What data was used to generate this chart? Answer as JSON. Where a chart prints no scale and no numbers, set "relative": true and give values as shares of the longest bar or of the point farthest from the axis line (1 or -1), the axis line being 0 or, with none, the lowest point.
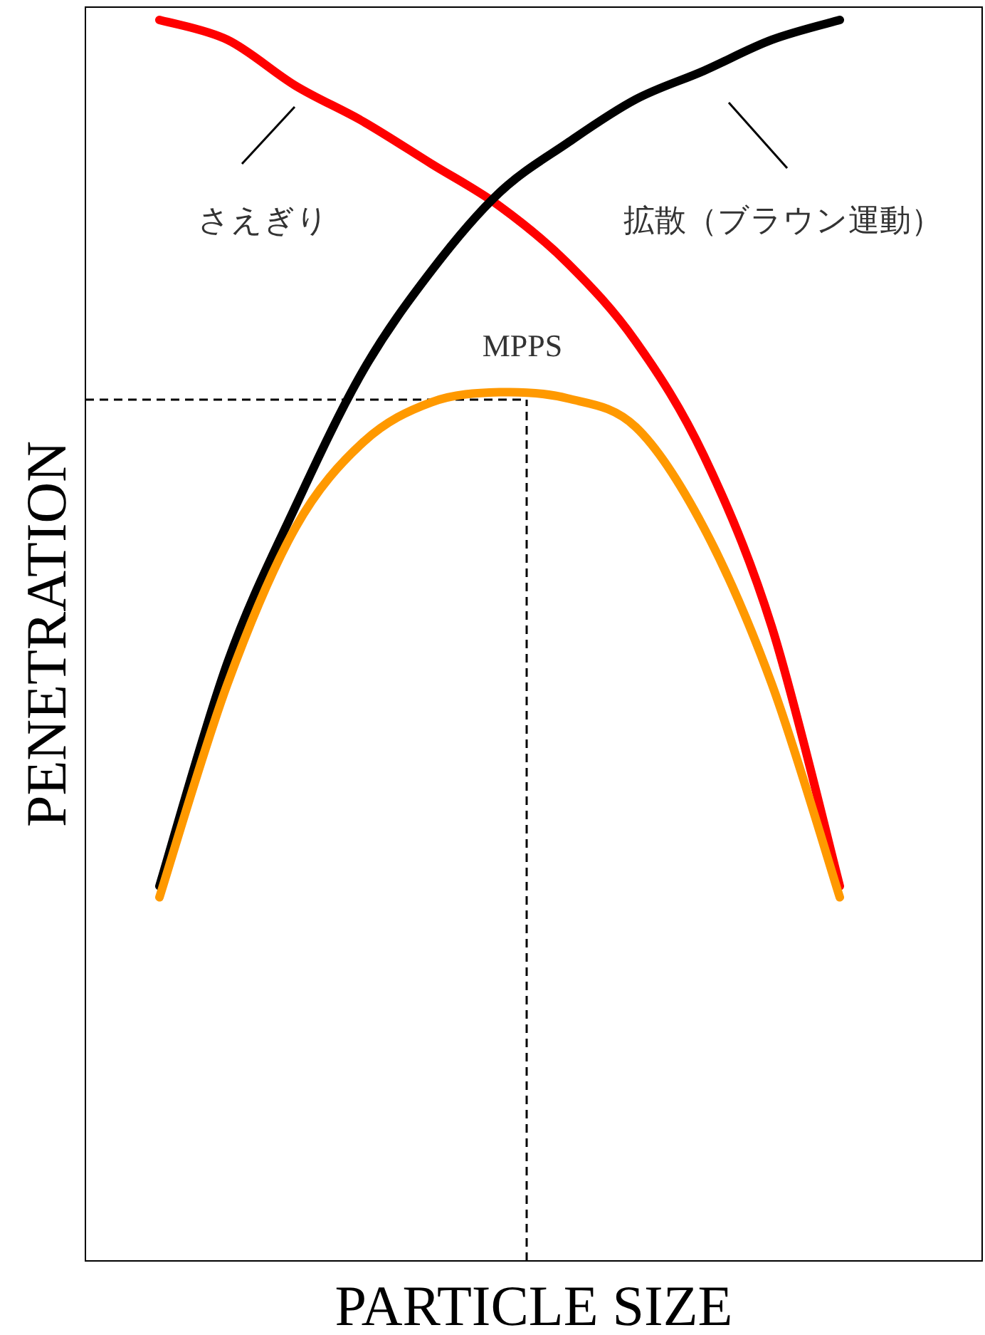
{
  "chart_data": {
    "type": "line",
    "relative": true,
    "xlabel": "PARTICLE SIZE",
    "ylabel": "PENETRATION",
    "categories": [
      null,
      null,
      null,
      null,
      null,
      null,
      null,
      null,
      null,
      null,
      null
    ],
    "series": [
      {
        "color": "#ff0000",
        "values": [
          1.0,
          0.984,
          0.947,
          0.918,
          0.884,
          0.85,
          0.804,
          0.741,
          0.649,
          0.511,
          0.302
        ]
      },
      {
        "color": "#000000",
        "values": [
          0.302,
          0.482,
          0.608,
          0.718,
          0.798,
          0.861,
          0.901,
          0.936,
          0.959,
          0.984,
          1.0
        ]
      },
      {
        "color": "#ff9900",
        "values": [
          0.293,
          0.465,
          0.591,
          0.66,
          0.692,
          0.7,
          0.695,
          0.672,
          0.591,
          0.465,
          0.293
        ]
      }
    ],
    "ref_lines": [
      {
        "axis": "y",
        "value": 0.694,
        "color": "#000000",
        "line_style": "dashed"
      }
    ],
    "annotations": [
      "さえぎり",
      "拡散（ブラウン運動）",
      "MPPS"
    ]
  }
}
